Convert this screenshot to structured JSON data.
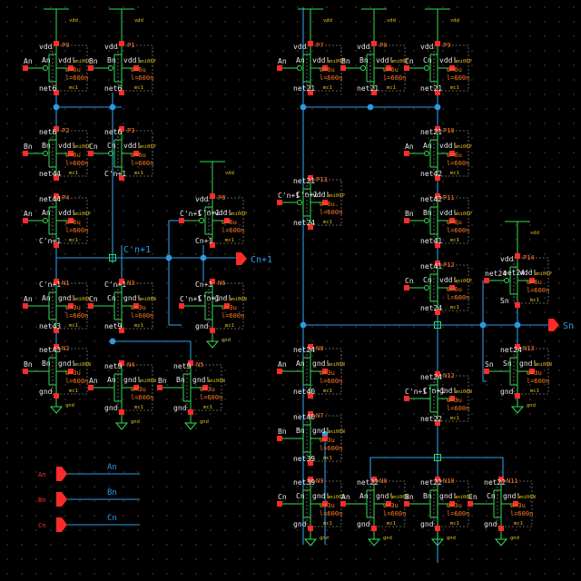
{
  "labels": {
    "vdd": "vdd",
    "gnd": "gnd",
    "mc": "mc1",
    "p_model": "ami06P",
    "n_model": "ami06N",
    "bulk_p": "vdd!",
    "bulk_n": "gnd!",
    "width_p": "w=6u",
    "width_n": "w=3u",
    "length": "l=600n",
    "out_cn1": "Cn+1",
    "out_sn": "Sn",
    "net_cpn1": "C'n+1"
  },
  "pins": [
    {
      "label": "An",
      "wire": "An"
    },
    {
      "label": "Bn",
      "wire": "Bn"
    },
    {
      "label": "Cn",
      "wire": "Cn"
    }
  ],
  "transistors": [
    {
      "name": "P0",
      "type": "p",
      "gate": "An",
      "top": "vdd",
      "bottom": "net6",
      "w": "w=6u",
      "wire": "An"
    },
    {
      "name": "P1",
      "type": "p",
      "gate": "Bn",
      "top": "vdd",
      "bottom": "net6",
      "w": "w=6u",
      "wire": "Bn"
    },
    {
      "name": "P2",
      "type": "p",
      "gate": "Bn",
      "top": "net6",
      "bottom": "net44",
      "w": "w=6u",
      "wire": "Bn"
    },
    {
      "name": "P3",
      "type": "p",
      "gate": "Cn",
      "top": "net6",
      "bottom": "C'n+1",
      "w": "w=6u",
      "wire": "Cn"
    },
    {
      "name": "P4",
      "type": "p",
      "gate": "An",
      "top": "net44",
      "bottom": "C'n+1",
      "w": "w=6u",
      "wire": "An"
    },
    {
      "name": "P6",
      "type": "p",
      "gate": "C'n+1",
      "top": "vdd",
      "bottom": "Cn+1",
      "w": "w=6u",
      "wire": "C'n+1"
    },
    {
      "name": "N1",
      "type": "n",
      "gate": "An",
      "top": "C'n+1",
      "bottom": "net43",
      "w": "w=3u",
      "wire": "An"
    },
    {
      "name": "N3",
      "type": "n",
      "gate": "Cn",
      "top": "C'n+1",
      "bottom": "net9",
      "w": "w=3u",
      "wire": "Cn"
    },
    {
      "name": "N2",
      "type": "n",
      "gate": "Bn",
      "top": "net43",
      "bottom": "gnd",
      "w": "w=3u",
      "wire": "Bn"
    },
    {
      "name": "N4",
      "type": "n",
      "gate": "An",
      "top": "net9",
      "bottom": "gnd",
      "w": "w=3u",
      "wire": "An"
    },
    {
      "name": "N5",
      "type": "n",
      "gate": "Bn",
      "top": "net9",
      "bottom": "gnd",
      "w": "w=3u",
      "wire": "Bn"
    },
    {
      "name": "N6",
      "type": "n",
      "gate": "C'n+1",
      "top": "Cn+1",
      "bottom": "gnd",
      "w": "w=3u",
      "wire": "C'n+1"
    },
    {
      "name": "P7",
      "type": "p",
      "gate": "An",
      "top": "vdd",
      "bottom": "net21",
      "w": "w=6u",
      "wire": "An"
    },
    {
      "name": "P8",
      "type": "p",
      "gate": "Bn",
      "top": "vdd",
      "bottom": "net21",
      "w": "w=6u",
      "wire": "Bn"
    },
    {
      "name": "P9",
      "type": "p",
      "gate": "Cn",
      "top": "vdd",
      "bottom": "net21",
      "w": "w=6u",
      "wire": "Cn"
    },
    {
      "name": "P10",
      "type": "p",
      "gate": "An",
      "top": "net21",
      "bottom": "net42",
      "w": "w=6u",
      "wire": "An"
    },
    {
      "name": "P11",
      "type": "p",
      "gate": "Bn",
      "top": "net42",
      "bottom": "net41",
      "w": "w=6u",
      "wire": "Bn"
    },
    {
      "name": "P12",
      "type": "p",
      "gate": "Cn",
      "top": "net41",
      "bottom": "net24",
      "w": "w=6u",
      "wire": "Cn"
    },
    {
      "name": "P13",
      "type": "p",
      "gate": "C'n+1",
      "top": "net21",
      "bottom": "net24",
      "w": "w=6u.",
      "wire": "C'n+1"
    },
    {
      "name": "P14",
      "type": "p",
      "gate": "net24",
      "top": "vdd",
      "bottom": "Sn",
      "w": "w=6u",
      "wire": "net24"
    },
    {
      "name": "N8",
      "type": "n",
      "gate": "An",
      "top": "net24",
      "bottom": "net40",
      "w": "w=3u",
      "wire": "An"
    },
    {
      "name": "N7",
      "type": "n",
      "gate": "Bn",
      "top": "net40",
      "bottom": "net39",
      "w": "w=3u",
      "wire": "Bn"
    },
    {
      "name": "N9",
      "type": "n",
      "gate": "Cn",
      "top": "net39",
      "bottom": "gnd",
      "w": "w=3u",
      "wire": "Cn"
    },
    {
      "name": "N12",
      "type": "n",
      "gate": "C'n+1",
      "top": "net24",
      "bottom": "net22",
      "w": "w=3u",
      "wire": "C'n+1"
    },
    {
      "name": "N8",
      "type": "n",
      "gate": "An",
      "top": "net22",
      "bottom": "gnd",
      "w": "w=3u",
      "wire": "An"
    },
    {
      "name": "N10",
      "type": "n",
      "gate": "Bn",
      "top": "net22",
      "bottom": "gnd",
      "w": "w=3u",
      "wire": "Bn"
    },
    {
      "name": "N11",
      "type": "n",
      "gate": "Cn",
      "top": "net22",
      "bottom": "gnd",
      "w": "w=3u",
      "wire": "Cn"
    },
    {
      "name": "N13",
      "type": "n",
      "gate": "Sn",
      "top": "net24",
      "bottom": "gnd",
      "w": "w=3u",
      "wire": "Sn"
    }
  ],
  "colors": {
    "wire": "#2b9be3",
    "net_label": "#e9e9e9",
    "instance": "#ff7a22",
    "pin": "#ff2a2a",
    "body": "#33dd55",
    "model": "#e0c020"
  }
}
